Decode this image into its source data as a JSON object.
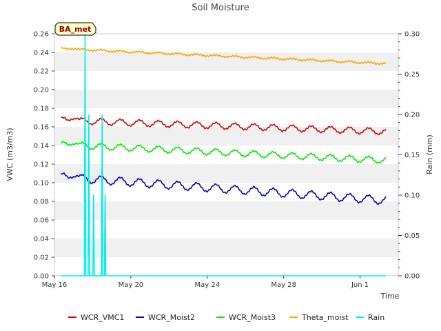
{
  "chart_data": {
    "type": "line",
    "title": "Soil Moisture",
    "station_label": "BA_met",
    "xlabel": "Time",
    "ylabel": "VWC (m3/m3)",
    "y2label": "Rain (mm)",
    "x_range_days": [
      0,
      18
    ],
    "x_ticks": [
      {
        "day": 0,
        "label": "May 16"
      },
      {
        "day": 4,
        "label": "May 20"
      },
      {
        "day": 8,
        "label": "May 24"
      },
      {
        "day": 12,
        "label": "May 28"
      },
      {
        "day": 16,
        "label": "Jun 1"
      }
    ],
    "ylim": [
      0,
      0.26
    ],
    "y_ticks": [
      "0.00",
      "0.02",
      "0.04",
      "0.06",
      "0.08",
      "0.10",
      "0.12",
      "0.14",
      "0.16",
      "0.18",
      "0.20",
      "0.22",
      "0.24",
      "0.26"
    ],
    "y2lim": [
      0,
      0.3
    ],
    "y2_ticks": [
      "0.00",
      "0.05",
      "0.10",
      "0.15",
      "0.20",
      "0.25",
      "0.30"
    ],
    "data_day_range": [
      0.35,
      17.35
    ],
    "series": [
      {
        "name": "WCR_VMC1",
        "color": "#dd0000",
        "axis": "left",
        "start": 0.167,
        "end": 0.155,
        "amplitude": 0.0032,
        "bump": 0.005
      },
      {
        "name": "WCR_Moist2",
        "color": "#0000cc",
        "axis": "left",
        "start": 0.106,
        "end": 0.081,
        "amplitude": 0.0042,
        "bump": 0.005
      },
      {
        "name": "WCR_Moist3",
        "color": "#00ee00",
        "axis": "left",
        "start": 0.141,
        "end": 0.124,
        "amplitude": 0.0032,
        "bump": 0.004
      },
      {
        "name": "Theta_moist",
        "color": "#ffa500",
        "axis": "left",
        "start": 0.244,
        "end": 0.228,
        "amplitude": 0.0008,
        "bump": 0.001
      },
      {
        "name": "Rain",
        "color": "#00eeee",
        "axis": "right",
        "baseline": 0.0,
        "spikes": [
          {
            "day": 1.6,
            "value": 0.3
          },
          {
            "day": 1.8,
            "value": 0.2
          },
          {
            "day": 2.05,
            "value": 0.1
          },
          {
            "day": 2.5,
            "value": 0.2
          },
          {
            "day": 2.65,
            "value": 0.1
          }
        ]
      }
    ]
  }
}
